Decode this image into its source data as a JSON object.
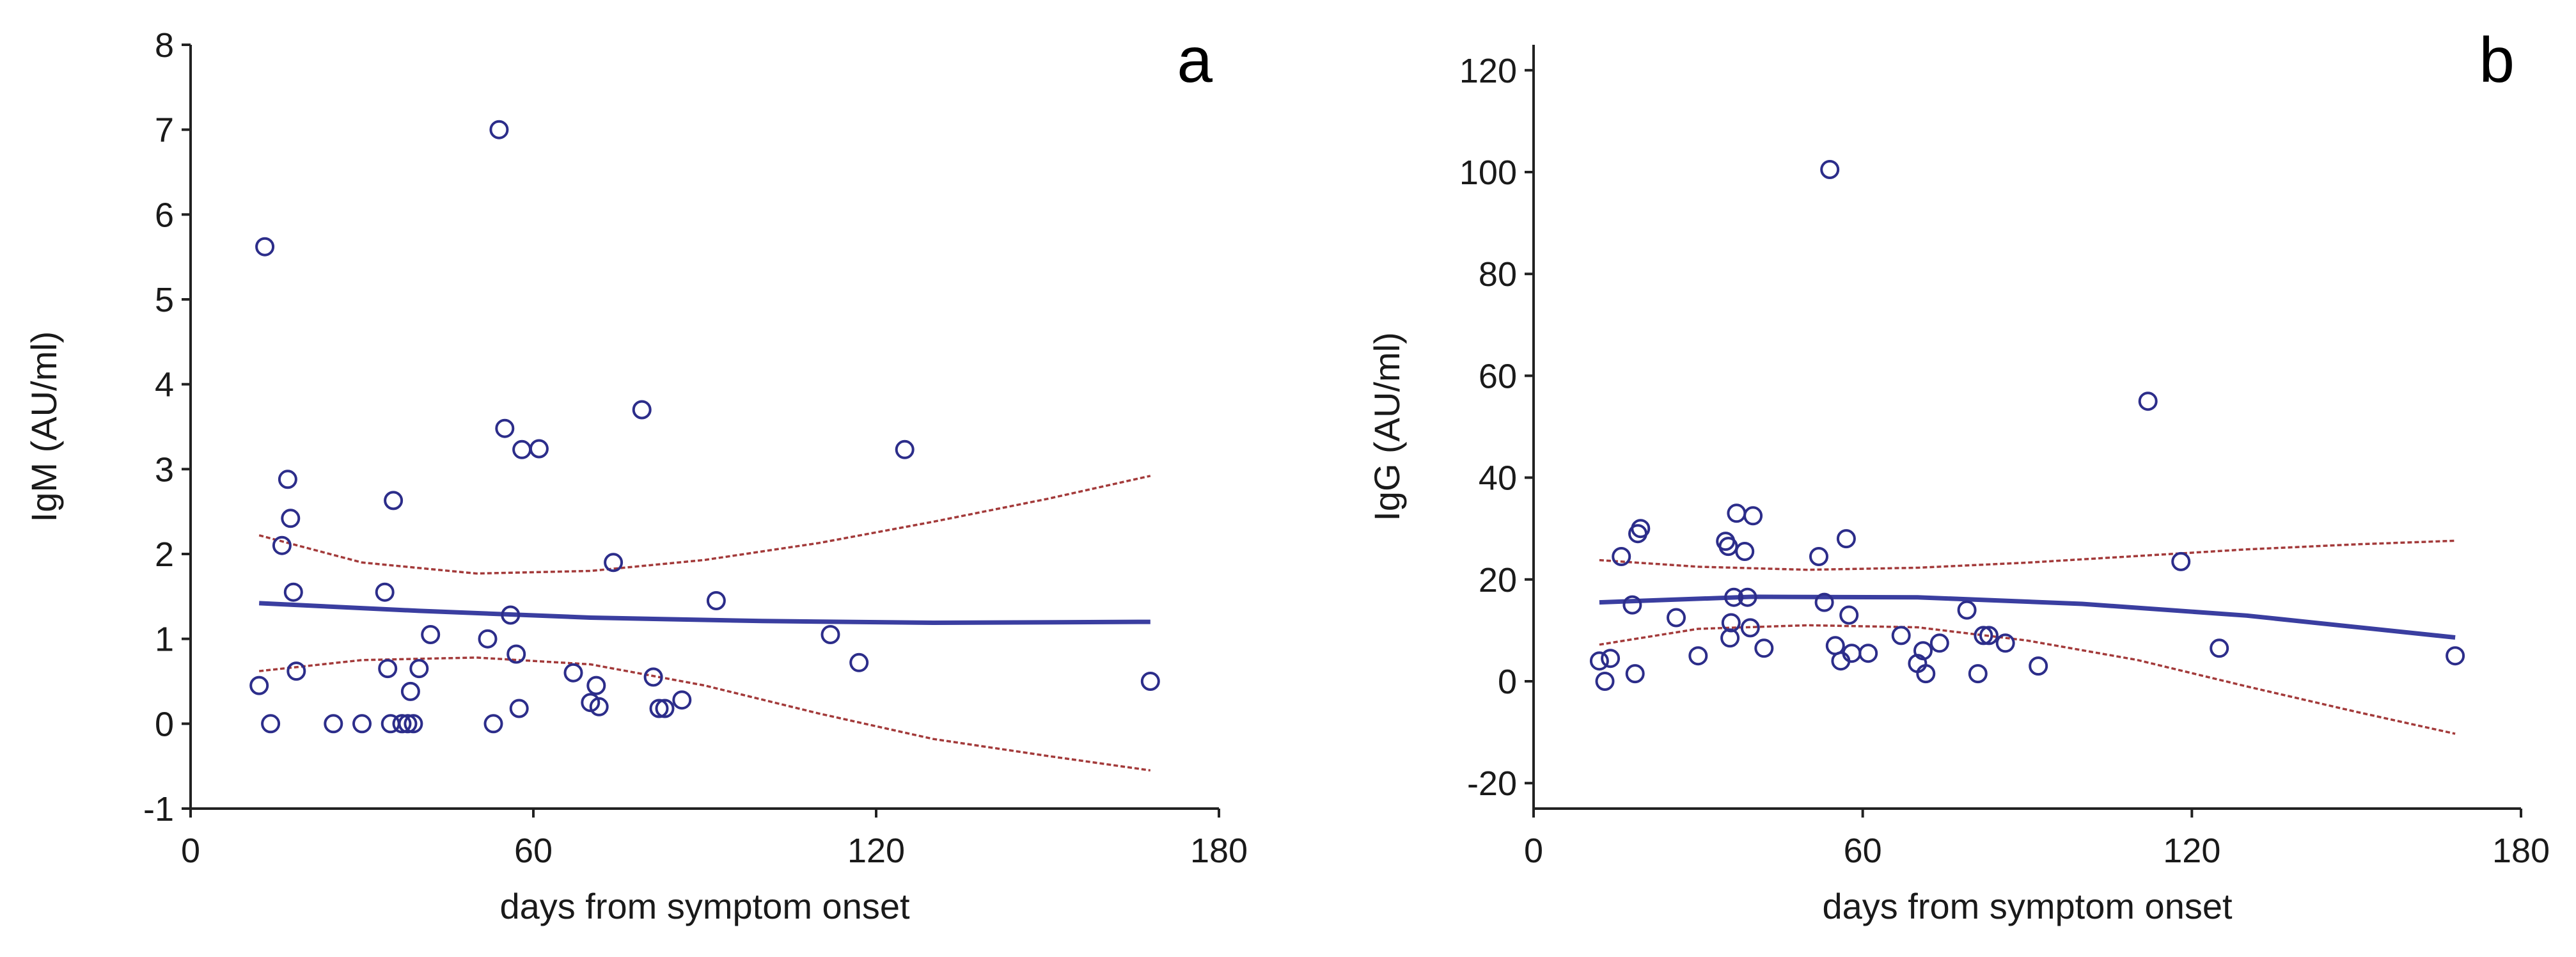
{
  "colors": {
    "point_stroke": "#2c2d8a",
    "fit_line": "#3a3ea0",
    "ci_line": "#a33a3a",
    "axis": "#222222"
  },
  "chart_data": [
    {
      "panel_label": "a",
      "type": "scatter",
      "title": "",
      "xlabel": "days from symptom onset",
      "ylabel": "IgM (AU/ml)",
      "xlim": [
        0,
        180
      ],
      "ylim": [
        -1,
        8
      ],
      "xticks": [
        0,
        60,
        120,
        180
      ],
      "yticks": [
        -1,
        0,
        1,
        2,
        3,
        4,
        5,
        6,
        7,
        8
      ],
      "grid": false,
      "points": [
        [
          12,
          0.45
        ],
        [
          13,
          5.62
        ],
        [
          14,
          0
        ],
        [
          16,
          2.1
        ],
        [
          17,
          2.88
        ],
        [
          17.5,
          2.42
        ],
        [
          18,
          1.55
        ],
        [
          18.5,
          0.62
        ],
        [
          25,
          0
        ],
        [
          30,
          0
        ],
        [
          34,
          1.55
        ],
        [
          34.5,
          0.65
        ],
        [
          35,
          0
        ],
        [
          35.5,
          2.63
        ],
        [
          37,
          0
        ],
        [
          38,
          0
        ],
        [
          38.5,
          0.38
        ],
        [
          39,
          0
        ],
        [
          40,
          0.65
        ],
        [
          42,
          1.05
        ],
        [
          52,
          1.0
        ],
        [
          53,
          0
        ],
        [
          54,
          7.0
        ],
        [
          55,
          3.48
        ],
        [
          56,
          1.28
        ],
        [
          57,
          0.82
        ],
        [
          57.5,
          0.18
        ],
        [
          58,
          3.23
        ],
        [
          61,
          3.24
        ],
        [
          67,
          0.6
        ],
        [
          70,
          0.25
        ],
        [
          71,
          0.45
        ],
        [
          71.5,
          0.2
        ],
        [
          74,
          1.9
        ],
        [
          79,
          3.7
        ],
        [
          81,
          0.55
        ],
        [
          82,
          0.18
        ],
        [
          83,
          0.18
        ],
        [
          86,
          0.28
        ],
        [
          92,
          1.45
        ],
        [
          112,
          1.05
        ],
        [
          117,
          0.72
        ],
        [
          125,
          3.23
        ],
        [
          168,
          0.5
        ]
      ],
      "fit": {
        "x": [
          12,
          40,
          70,
          100,
          130,
          168
        ],
        "y": [
          1.42,
          1.33,
          1.25,
          1.21,
          1.19,
          1.2
        ]
      },
      "ci_upper": {
        "x": [
          12,
          30,
          50,
          70,
          90,
          110,
          130,
          150,
          168
        ],
        "y": [
          2.22,
          1.9,
          1.77,
          1.8,
          1.93,
          2.13,
          2.38,
          2.65,
          2.92
        ]
      },
      "ci_lower": {
        "x": [
          12,
          30,
          50,
          70,
          90,
          110,
          130,
          150,
          168
        ],
        "y": [
          0.62,
          0.75,
          0.78,
          0.7,
          0.45,
          0.12,
          -0.18,
          -0.38,
          -0.55
        ]
      }
    },
    {
      "panel_label": "b",
      "type": "scatter",
      "title": "",
      "xlabel": "days from symptom onset",
      "ylabel": "IgG (AU/ml)",
      "xlim": [
        0,
        180
      ],
      "ylim": [
        -25,
        125
      ],
      "xticks": [
        0,
        60,
        120,
        180
      ],
      "yticks": [
        -20,
        0,
        20,
        40,
        60,
        80,
        100,
        120
      ],
      "grid": false,
      "points": [
        [
          12,
          4
        ],
        [
          13,
          0
        ],
        [
          14,
          4.5
        ],
        [
          16,
          24.5
        ],
        [
          18,
          15
        ],
        [
          18.5,
          1.5
        ],
        [
          19,
          29
        ],
        [
          19.5,
          30
        ],
        [
          26,
          12.5
        ],
        [
          30,
          5
        ],
        [
          35,
          27.5
        ],
        [
          35.5,
          26.5
        ],
        [
          35.8,
          8.5
        ],
        [
          36,
          11.5
        ],
        [
          36.5,
          16.5
        ],
        [
          37,
          33
        ],
        [
          38.5,
          25.5
        ],
        [
          39,
          16.5
        ],
        [
          39.5,
          10.5
        ],
        [
          40,
          32.5
        ],
        [
          42,
          6.5
        ],
        [
          52,
          24.5
        ],
        [
          53,
          15.5
        ],
        [
          54,
          100.5
        ],
        [
          55,
          7
        ],
        [
          56,
          4
        ],
        [
          57,
          28
        ],
        [
          57.5,
          13
        ],
        [
          58,
          5.5
        ],
        [
          61,
          5.5
        ],
        [
          67,
          9
        ],
        [
          70,
          3.5
        ],
        [
          71,
          6
        ],
        [
          71.5,
          1.5
        ],
        [
          74,
          7.5
        ],
        [
          79,
          14
        ],
        [
          81,
          1.5
        ],
        [
          82,
          9
        ],
        [
          83,
          9
        ],
        [
          86,
          7.5
        ],
        [
          92,
          3
        ],
        [
          112,
          55
        ],
        [
          118,
          23.5
        ],
        [
          125,
          6.5
        ],
        [
          168,
          5
        ]
      ],
      "fit": {
        "x": [
          12,
          40,
          70,
          100,
          130,
          168
        ],
        "y": [
          15.5,
          16.6,
          16.5,
          15.2,
          12.9,
          8.6
        ]
      },
      "ci_upper": {
        "x": [
          12,
          30,
          50,
          70,
          90,
          110,
          130,
          150,
          168
        ],
        "y": [
          23.8,
          22.5,
          21.9,
          22.3,
          23.3,
          24.6,
          25.9,
          26.9,
          27.6
        ]
      },
      "ci_lower": {
        "x": [
          12,
          30,
          50,
          70,
          90,
          110,
          130,
          150,
          168
        ],
        "y": [
          7.2,
          10.3,
          11.0,
          10.6,
          8.0,
          4.2,
          -1.0,
          -6.0,
          -10.3
        ]
      }
    }
  ]
}
